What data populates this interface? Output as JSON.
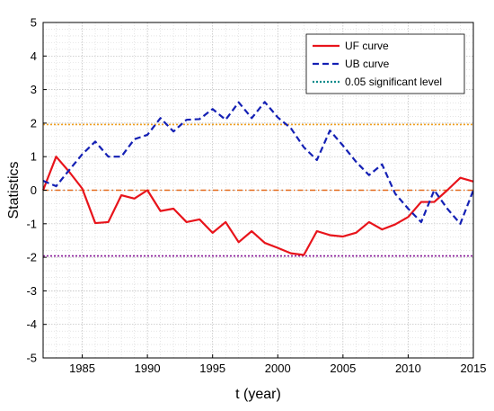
{
  "chart_data": {
    "type": "line",
    "xlabel": "t (year)",
    "ylabel": "Statistics",
    "xlim": [
      1982,
      2015
    ],
    "ylim": [
      -5,
      5
    ],
    "x_ticks": [
      "1985",
      "1990",
      "1995",
      "2000",
      "2005",
      "2010",
      "2015"
    ],
    "y_ticks": [
      "-5",
      "-4",
      "-3",
      "-2",
      "-1",
      "0",
      "1",
      "2",
      "3",
      "4",
      "5"
    ],
    "grid": true,
    "minor_grid": true,
    "legend_position": "top-right",
    "x": [
      1982,
      1983,
      1984,
      1985,
      1986,
      1987,
      1988,
      1989,
      1990,
      1991,
      1992,
      1993,
      1994,
      1995,
      1996,
      1997,
      1998,
      1999,
      2000,
      2001,
      2002,
      2003,
      2004,
      2005,
      2006,
      2007,
      2008,
      2009,
      2010,
      2011,
      2012,
      2013,
      2014,
      2015
    ],
    "series": [
      {
        "name": "UF curve",
        "color": "#e8141b",
        "style": "solid",
        "values": [
          0.0,
          1.0,
          0.55,
          0.05,
          -0.98,
          -0.95,
          -0.15,
          -0.25,
          0.0,
          -0.62,
          -0.55,
          -0.95,
          -0.87,
          -1.27,
          -0.95,
          -1.55,
          -1.22,
          -1.57,
          -1.72,
          -1.88,
          -1.93,
          -1.22,
          -1.34,
          -1.38,
          -1.27,
          -0.95,
          -1.17,
          -1.02,
          -0.8,
          -0.35,
          -0.35,
          0.0,
          0.37,
          0.26
        ]
      },
      {
        "name": "UB curve",
        "color": "#1420b4",
        "style": "dashed",
        "values": [
          0.28,
          0.12,
          0.6,
          1.07,
          1.45,
          1.0,
          1.0,
          1.52,
          1.65,
          2.15,
          1.75,
          2.1,
          2.12,
          2.42,
          2.1,
          2.62,
          2.15,
          2.63,
          2.17,
          1.85,
          1.28,
          0.9,
          1.78,
          1.33,
          0.85,
          0.45,
          0.77,
          -0.1,
          -0.55,
          -0.95,
          0.0,
          -0.55,
          -1.0,
          0.0
        ]
      }
    ],
    "reference_lines": [
      {
        "name": "0.05 significant level",
        "y": 1.96,
        "color": "#f0a020",
        "style": "dotted"
      },
      {
        "y": 0,
        "color": "#e46a1a",
        "style": "dashdot"
      },
      {
        "y": -1.96,
        "color": "#8a1a9a",
        "style": "dotted"
      }
    ],
    "legend": [
      {
        "label": "UF curve",
        "color": "#e8141b",
        "style": "solid"
      },
      {
        "label": "UB curve",
        "color": "#1420b4",
        "style": "dashed"
      },
      {
        "label": "0.05 significant level",
        "color": "#0f8c8c",
        "style": "dotted"
      }
    ]
  }
}
